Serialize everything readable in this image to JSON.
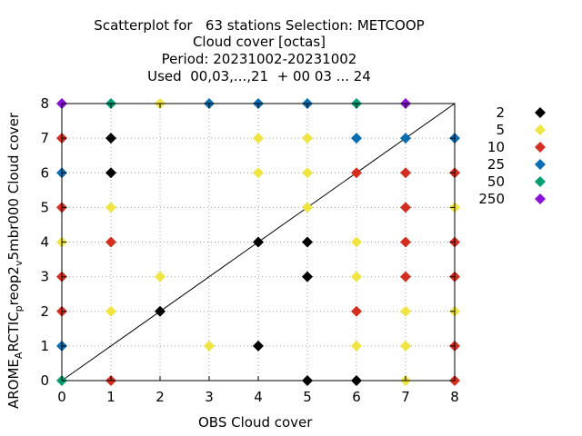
{
  "chart_data": {
    "type": "scatter",
    "title_lines": [
      "Scatterplot for   63 stations Selection: METCOOP",
      "Cloud cover [octas]",
      "Period: 20231002-20231002",
      "Used  00,03,...,21  + 00 03 ... 24"
    ],
    "xlabel": "OBS Cloud cover",
    "ylabel_parts": [
      "AROME",
      "A",
      "RCTIC",
      "p",
      "reop2",
      "v",
      "5mbr000 Cloud cover"
    ],
    "xlim": [
      0,
      8
    ],
    "ylim": [
      0,
      8
    ],
    "xticks": [
      "0",
      "1",
      "2",
      "3",
      "4",
      "5",
      "6",
      "7",
      "8"
    ],
    "yticks": [
      "0",
      "1",
      "2",
      "3",
      "4",
      "5",
      "6",
      "7",
      "8"
    ],
    "grid": true,
    "legend_placement": "right",
    "diagonal": true,
    "series": [
      {
        "name": "2",
        "color": "#000000",
        "points": [
          [
            1,
            7
          ],
          [
            1,
            6
          ],
          [
            2,
            2
          ],
          [
            4,
            4
          ],
          [
            4,
            1
          ],
          [
            5,
            4
          ],
          [
            5,
            3
          ],
          [
            5,
            0
          ],
          [
            6,
            0
          ]
        ]
      },
      {
        "name": "5",
        "color": "#f0e442",
        "points": [
          [
            0,
            4
          ],
          [
            1,
            5
          ],
          [
            1,
            2
          ],
          [
            2,
            8
          ],
          [
            2,
            3
          ],
          [
            3,
            1
          ],
          [
            4,
            7
          ],
          [
            4,
            6
          ],
          [
            5,
            7
          ],
          [
            5,
            6
          ],
          [
            5,
            5
          ],
          [
            6,
            4
          ],
          [
            6,
            3
          ],
          [
            6,
            1
          ],
          [
            7,
            2
          ],
          [
            7,
            1
          ],
          [
            7,
            0
          ],
          [
            8,
            5
          ],
          [
            8,
            2
          ]
        ]
      },
      {
        "name": "10",
        "color": "#d52e1e",
        "points": [
          [
            0,
            7
          ],
          [
            0,
            5
          ],
          [
            0,
            3
          ],
          [
            0,
            2
          ],
          [
            1,
            4
          ],
          [
            1,
            0
          ],
          [
            6,
            6
          ],
          [
            6,
            2
          ],
          [
            7,
            6
          ],
          [
            7,
            5
          ],
          [
            7,
            4
          ],
          [
            7,
            3
          ],
          [
            8,
            6
          ],
          [
            8,
            4
          ],
          [
            8,
            3
          ],
          [
            8,
            1
          ],
          [
            8,
            0
          ]
        ]
      },
      {
        "name": "25",
        "color": "#0a6eb4",
        "points": [
          [
            0,
            6
          ],
          [
            0,
            1
          ],
          [
            3,
            8
          ],
          [
            4,
            8
          ],
          [
            5,
            8
          ],
          [
            6,
            7
          ],
          [
            7,
            7
          ],
          [
            8,
            7
          ]
        ]
      },
      {
        "name": "50",
        "color": "#009e73",
        "points": [
          [
            0,
            0
          ],
          [
            1,
            8
          ],
          [
            6,
            8
          ]
        ]
      },
      {
        "name": "250",
        "color": "#8b10d8",
        "points": [
          [
            0,
            8
          ],
          [
            7,
            8
          ]
        ]
      }
    ]
  }
}
